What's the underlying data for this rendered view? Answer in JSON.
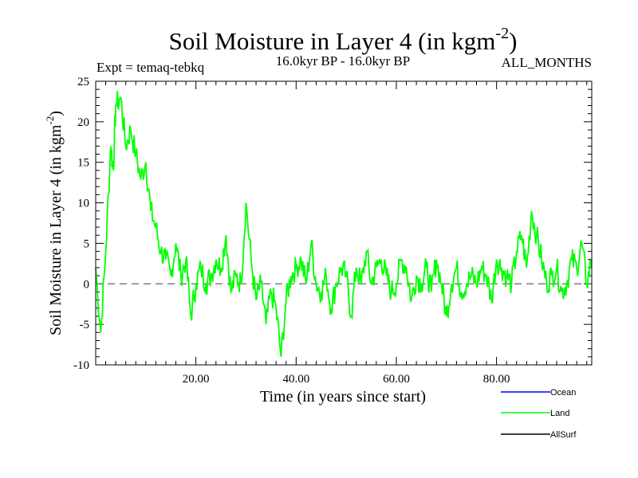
{
  "chart_data": {
    "type": "line",
    "title": "Soil Moisture in Layer 4 (in kgm",
    "title_sup": "-2",
    "title_close": ")",
    "subtitle_left": "Expt = temaq-tebkq",
    "subtitle_center": "16.0kyr BP - 16.0kyr BP",
    "subtitle_right": "ALL_MONTHS",
    "xlabel": "Time (in years since start)",
    "ylabel": "Soil Moisture in Layer 4 (in kgm",
    "ylabel_sup": "-2",
    "ylabel_close": ")",
    "xlim": [
      0,
      99
    ],
    "ylim": [
      -10,
      25
    ],
    "x_ticks": [
      20,
      40,
      60,
      80
    ],
    "x_tick_labels": [
      "20.00",
      "40.00",
      "60.00",
      "80.00"
    ],
    "y_ticks": [
      -10,
      -5,
      0,
      5,
      10,
      15,
      20,
      25
    ],
    "y_tick_labels": [
      "-10",
      "-5",
      "0",
      "5",
      "10",
      "15",
      "20",
      "25"
    ],
    "zero_line": 0,
    "legend_position": "bottom-right",
    "series": [
      {
        "name": "Ocean",
        "color": "#0000ff",
        "values": []
      },
      {
        "name": "Land",
        "color": "#00ff00",
        "x": [
          0,
          1,
          2,
          3,
          3.5,
          4,
          5,
          6,
          7,
          8,
          9,
          10,
          11,
          12,
          13,
          14,
          15,
          16,
          17,
          18,
          19,
          20,
          21,
          22,
          23,
          24,
          25,
          26,
          27,
          28,
          29,
          30,
          31,
          32,
          33,
          34,
          35,
          36,
          37,
          38,
          39,
          40,
          41,
          42,
          43,
          44,
          45,
          46,
          47,
          48,
          49,
          50,
          51,
          52,
          53,
          54,
          55,
          56,
          57,
          58,
          59,
          60,
          61,
          62,
          63,
          64,
          65,
          66,
          67,
          68,
          69,
          70,
          71,
          72,
          73,
          74,
          75,
          76,
          77,
          78,
          79,
          80,
          81,
          82,
          83,
          84,
          85,
          86,
          87,
          88,
          89,
          90,
          91,
          92,
          93,
          94,
          95,
          96,
          97,
          98,
          99
        ],
        "values": [
          2,
          -6,
          4,
          17,
          14,
          22,
          23,
          17,
          19,
          16,
          13,
          15,
          9,
          7,
          4,
          3,
          1,
          5,
          1,
          3,
          -4,
          0,
          2,
          0,
          1,
          3,
          2,
          6,
          -1,
          1,
          0,
          10,
          3,
          -2,
          0,
          -5,
          -1,
          -3,
          -9,
          -2,
          1,
          2,
          3,
          0,
          5,
          0,
          -1,
          1,
          -3,
          0,
          2,
          1,
          -4,
          2,
          0,
          4,
          0,
          2,
          3,
          1,
          -1,
          0,
          3,
          2,
          -2,
          1,
          0,
          2,
          -1,
          3,
          0,
          -4,
          0,
          2,
          -1,
          0,
          1,
          0,
          2,
          1,
          -2,
          3,
          2,
          1,
          0,
          4,
          6,
          2,
          9,
          6,
          3,
          0,
          1,
          2,
          -1,
          0,
          3,
          2,
          5,
          0,
          3
        ]
      },
      {
        "name": "AllSurf",
        "color": "#000000",
        "values": []
      }
    ]
  }
}
